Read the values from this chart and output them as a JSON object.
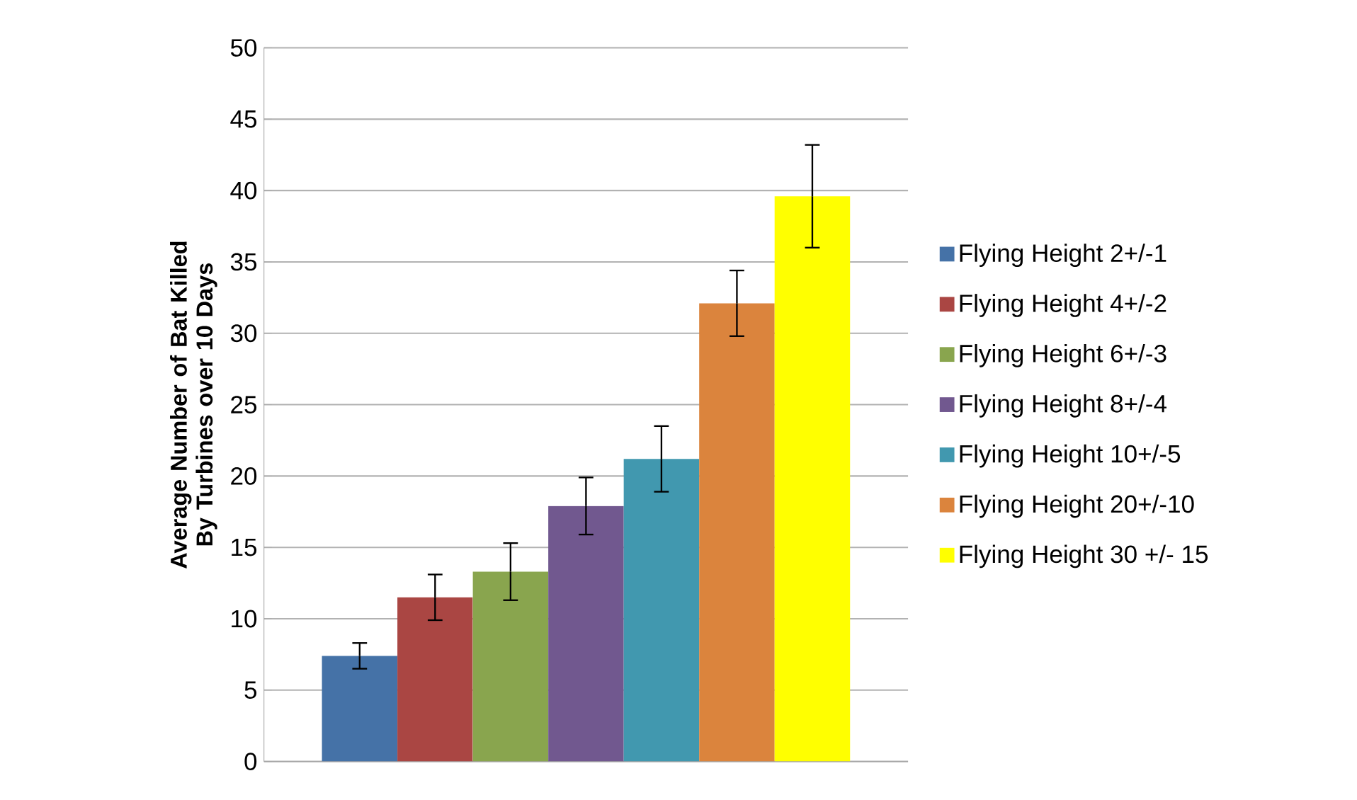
{
  "chart_data": {
    "type": "bar",
    "ylabel": "Average Number of Bat Killed By Turbines over 10 Days",
    "categories": [
      null
    ],
    "series": [
      {
        "name": "Flying Height 2+/-1",
        "color": "#4572a7",
        "values": [
          7.4
        ],
        "errors": [
          0.9
        ]
      },
      {
        "name": "Flying Height 4+/-2",
        "color": "#aa4643",
        "values": [
          11.5
        ],
        "errors": [
          1.6
        ]
      },
      {
        "name": "Flying Height 6+/-3",
        "color": "#89a54e",
        "values": [
          13.3
        ],
        "errors": [
          2.0
        ]
      },
      {
        "name": "Flying Height 8+/-4",
        "color": "#71588f",
        "values": [
          17.9
        ],
        "errors": [
          2.0
        ]
      },
      {
        "name": "Flying Height 10+/-5",
        "color": "#4198af",
        "values": [
          21.2
        ],
        "errors": [
          2.3
        ]
      },
      {
        "name": "Flying Height 20+/-10",
        "color": "#db843d",
        "values": [
          32.1
        ],
        "errors": [
          2.3
        ]
      },
      {
        "name": "Flying Height 30 +/- 15",
        "color": "#ffff00",
        "values": [
          39.6
        ],
        "errors": [
          3.6
        ]
      }
    ],
    "ylim": [
      0,
      50
    ],
    "yticks": [
      0,
      5,
      10,
      15,
      20,
      25,
      30,
      35,
      40,
      45,
      50
    ],
    "grid": "y",
    "legend": "right"
  }
}
